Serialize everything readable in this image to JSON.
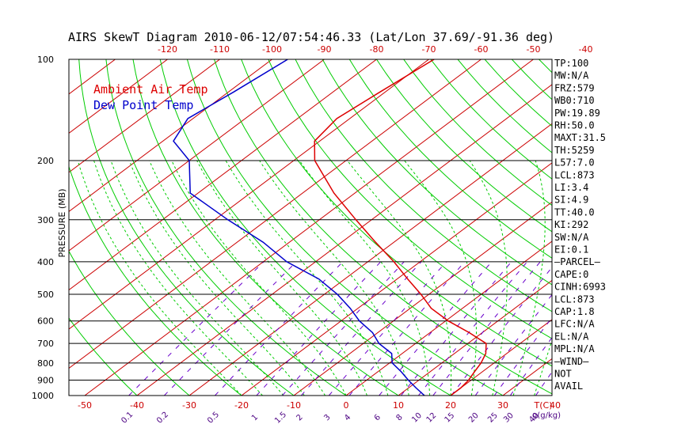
{
  "chart_data": {
    "type": "skewt",
    "title": "AIRS SkewT Diagram 2010-06-12/07:54:46.33 (Lat/Lon 37.69/-91.36 deg)",
    "ylabel": "PRESSURE (MB)",
    "pressure_ticks": [
      100,
      200,
      300,
      400,
      500,
      600,
      700,
      800,
      900,
      1000
    ],
    "pressure_ticks_labeled": [
      "100",
      "200",
      "300",
      "400",
      "500",
      "600",
      "700",
      "800",
      "900",
      "1000"
    ],
    "top_temp_ticks": [
      -120,
      -110,
      -100,
      -90,
      -80,
      -70,
      -60,
      -50,
      -40
    ],
    "bottom_temp_ticks": [
      -50,
      -40,
      -30,
      -20,
      -10,
      0,
      10,
      20,
      30,
      40
    ],
    "bottom_temp_unit": "T(C)",
    "mixing_ratio_ticks": [
      "0.1",
      "0.2",
      "0.5",
      "1",
      "1.5",
      "2",
      "3",
      "4",
      "6",
      "8",
      "10",
      "12",
      "15",
      "20",
      "25",
      "30",
      "40"
    ],
    "mixing_ratio_unit": "g(g/kg)",
    "legend": {
      "air_temp": "Ambient Air Temp",
      "dew_point": "Dew Point Temp"
    },
    "colors": {
      "air_temp": "#dd0000",
      "dew_point": "#0000cc",
      "isotherm": "#cc0000",
      "dry_adiabat": "#00cc00",
      "moist_adiabat": "#00cc00",
      "mixing_ratio": "#6a00cc"
    },
    "series": [
      {
        "name": "Ambient Air Temp",
        "pressure": [
          100,
          125,
          150,
          175,
          200,
          250,
          300,
          350,
          400,
          450,
          500,
          550,
          600,
          650,
          700,
          750,
          800,
          850,
          900,
          950,
          1000
        ],
        "temp_c": [
          -69,
          -71,
          -72.5,
          -71,
          -66,
          -54,
          -43,
          -33.5,
          -25,
          -18,
          -11.5,
          -6,
          0.5,
          7.5,
          13.5,
          16,
          17.5,
          18.5,
          19.5,
          20,
          20
        ]
      },
      {
        "name": "Dew Point Temp",
        "pressure": [
          100,
          125,
          150,
          175,
          200,
          250,
          300,
          350,
          400,
          450,
          500,
          550,
          600,
          650,
          700,
          750,
          800,
          850,
          900,
          950,
          1000
        ],
        "temp_c": [
          -97,
          -99,
          -101,
          -98,
          -90,
          -81.5,
          -67.5,
          -55,
          -45.5,
          -35,
          -27.5,
          -21.5,
          -16.5,
          -11,
          -7,
          -2,
          0.5,
          4.5,
          8,
          11.5,
          15
        ]
      }
    ],
    "indices": [
      "TP:100",
      "MW:N/A",
      "FRZ:579",
      "WB0:710",
      "PW:19.89",
      "RH:50.0",
      "MAXT:31.5",
      "TH:5259",
      "L57:7.0",
      "LCL:873",
      "LI:3.4",
      "SI:4.9",
      "TT:40.0",
      "KI:292",
      "SW:N/A",
      "EI:0.1",
      "—PARCEL—",
      "CAPE:0",
      "CINH:6993",
      "LCL:873",
      "CAP:1.8",
      "LFC:N/A",
      "EL:N/A",
      "MPL:N/A",
      "—WIND—",
      "NOT",
      "AVAIL"
    ],
    "grid": true
  }
}
